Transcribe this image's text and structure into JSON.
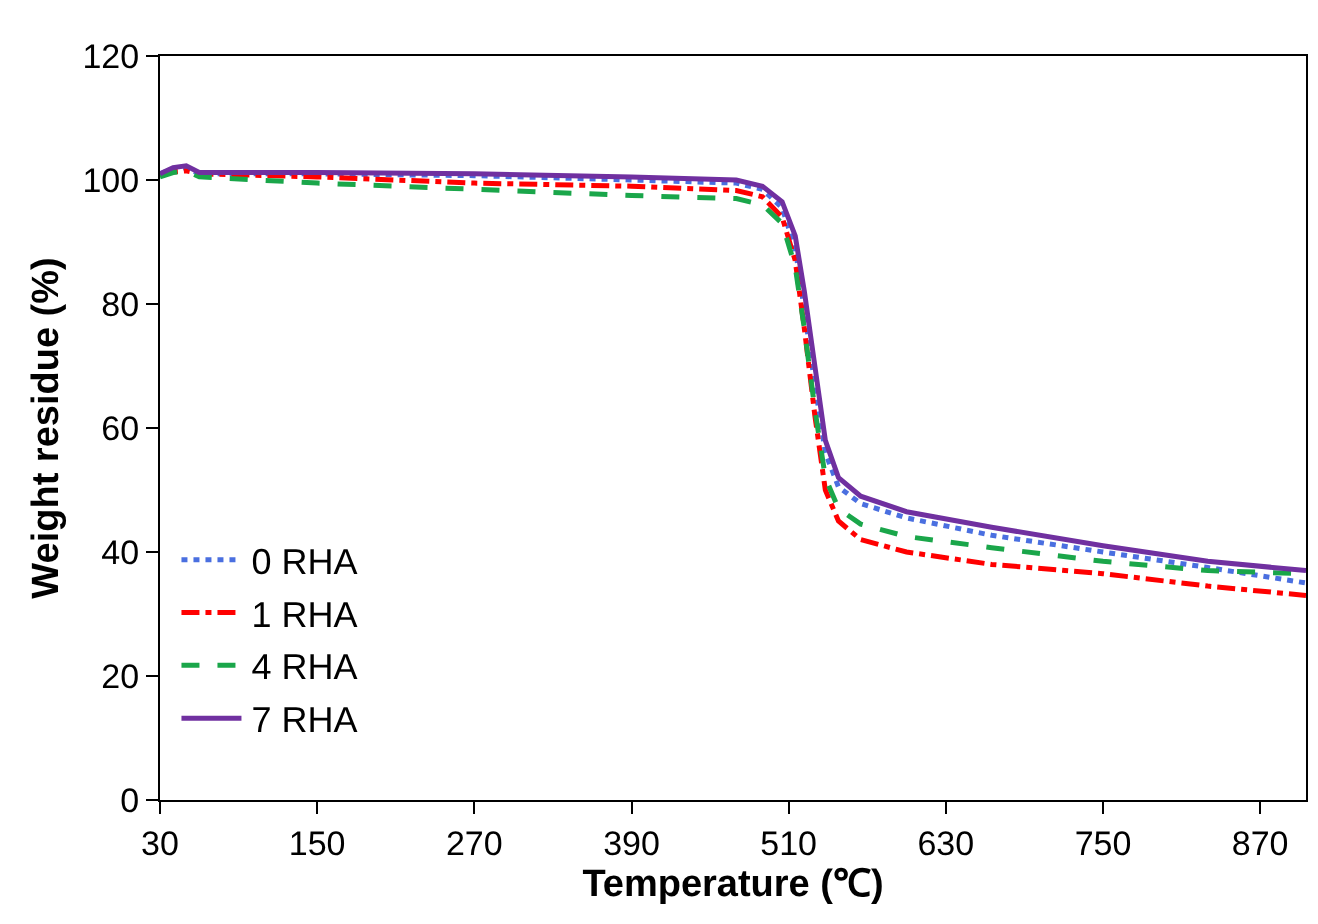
{
  "chart_data": {
    "type": "line",
    "xlabel": "Temperature (℃)",
    "ylabel": "Weight residue (%)",
    "xlim": [
      30,
      905
    ],
    "xticks": [
      30,
      150,
      270,
      390,
      510,
      630,
      750,
      870
    ],
    "ylim": [
      0,
      120
    ],
    "yticks": [
      0,
      20,
      40,
      60,
      80,
      100,
      120
    ],
    "grid": false,
    "legend": "bottom left",
    "marker": "none",
    "x": [
      30,
      40,
      50,
      60,
      150,
      270,
      390,
      470,
      490,
      505,
      515,
      522,
      530,
      538,
      548,
      565,
      600,
      665,
      750,
      830,
      905
    ],
    "series": [
      {
        "name": "0 RHA",
        "color": "#4a6fe0",
        "line_style": "dotted",
        "values": [
          101,
          101.8,
          102,
          101,
          101,
          100.7,
          100,
          99.5,
          98.5,
          95.5,
          89,
          79,
          67,
          56,
          50.5,
          47.8,
          45.5,
          42.7,
          40,
          37.5,
          35
        ]
      },
      {
        "name": "1 RHA",
        "color": "#ff0000",
        "line_style": "dashdot",
        "values": [
          101,
          101.3,
          101.5,
          101,
          100.5,
          99.5,
          99,
          98.3,
          97.3,
          94,
          87,
          76,
          62,
          50,
          45,
          42,
          40,
          38,
          36.5,
          34.5,
          33
        ]
      },
      {
        "name": "4 RHA",
        "color": "#1aa64a",
        "line_style": "dashed",
        "values": [
          100.5,
          101.2,
          101.5,
          100.5,
          99.5,
          98.5,
          97.5,
          97,
          96,
          93,
          86,
          76,
          63,
          52,
          47,
          44.5,
          42.5,
          40.7,
          38.5,
          37,
          36.5
        ]
      },
      {
        "name": "7 RHA",
        "color": "#7030a0",
        "line_style": "solid",
        "values": [
          101,
          102,
          102.3,
          101.2,
          101.2,
          101,
          100.5,
          100,
          99,
          96.5,
          91,
          82,
          70,
          58,
          52,
          49,
          46.5,
          44,
          41,
          38.5,
          37
        ]
      }
    ]
  }
}
